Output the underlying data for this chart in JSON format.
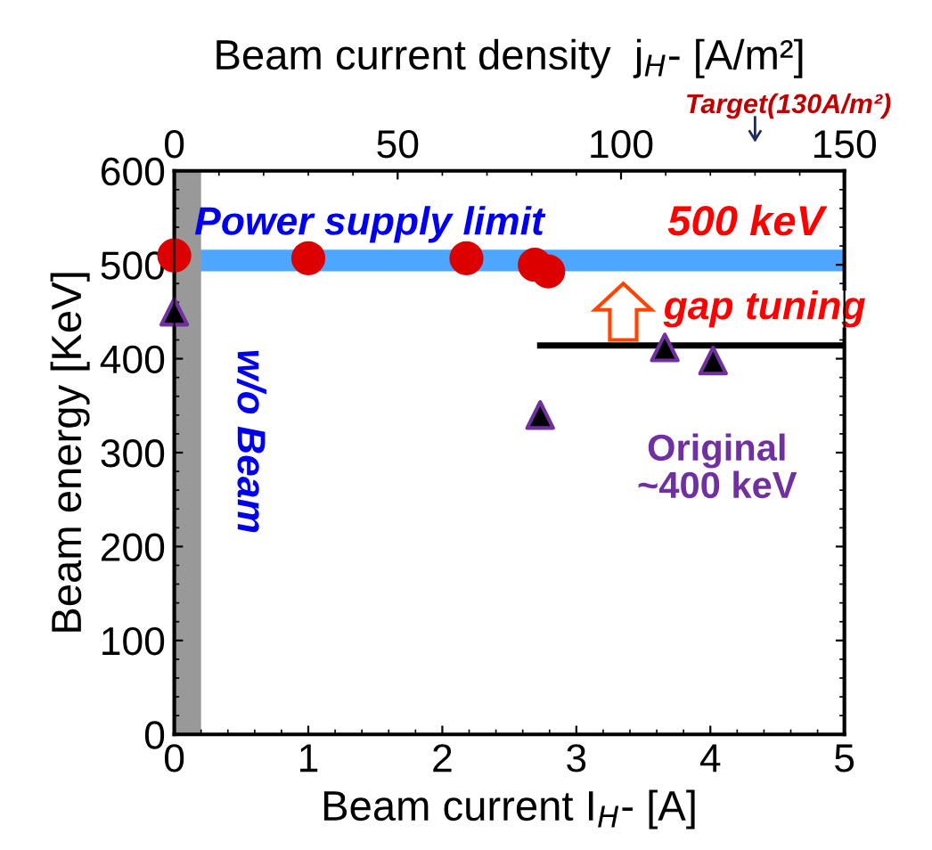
{
  "chart_data": {
    "type": "scatter",
    "xlabel": "Beam current I$_{H}$- [A]",
    "ylabel": "Beam energy [KeV]",
    "x2label": "Beam current density  j$_{H}$- [A/m²]",
    "xlim": [
      0,
      5
    ],
    "xticks": [
      0,
      1,
      2,
      3,
      4,
      5
    ],
    "ylim": [
      0,
      600
    ],
    "yticks": [
      0,
      100,
      200,
      300,
      400,
      500,
      600
    ],
    "x2lim": [
      0,
      150
    ],
    "x2ticks": [
      0,
      50,
      100,
      150
    ],
    "series": [
      {
        "marker": "circle",
        "color": "#dd0000",
        "x": [
          0,
          1.0,
          2.18,
          2.69,
          2.79
        ],
        "values": [
          510,
          507,
          507,
          500,
          493
        ]
      },
      {
        "marker": "triangle",
        "color": "#000000",
        "x": [
          0,
          2.73,
          3.66,
          4.02
        ],
        "values": [
          450,
          340,
          412,
          398
        ]
      },
      {
        "type": "line",
        "marker": "none",
        "color": "#000000",
        "x": [
          2.73,
          4.97
        ],
        "values": [
          414,
          414
        ]
      }
    ],
    "bands": [
      {
        "axis": "y",
        "from": 493,
        "to": 516,
        "color": "#4da6ff"
      },
      {
        "axis": "x",
        "from": 0,
        "to": 0.2,
        "color": "#999999"
      }
    ],
    "annotations": [
      "Power supply limit",
      "500 keV",
      "gap tuning",
      "Original\n~400 keV",
      "w/o Beam",
      "Target(130A/m²)"
    ],
    "grid": false,
    "legend": false
  }
}
